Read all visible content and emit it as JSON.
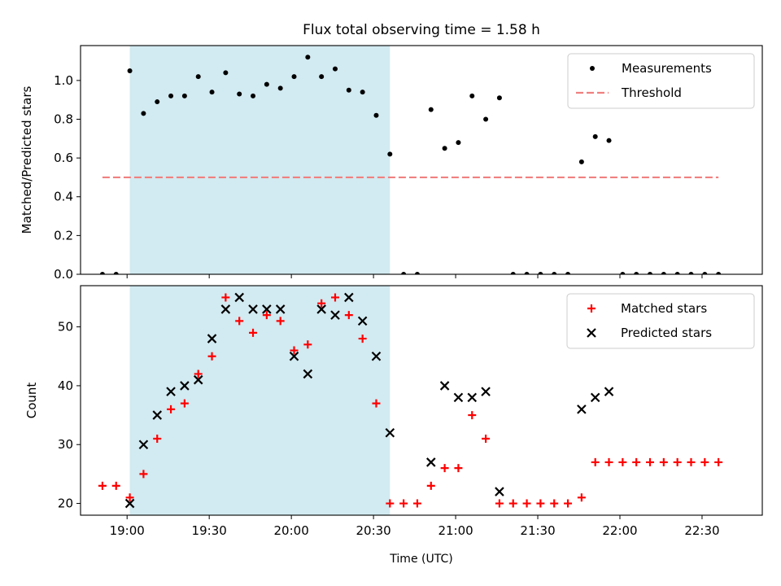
{
  "title": "Flux total observing time = 1.58 h",
  "xlabel": "Time (UTC)",
  "x_ticks": [
    "19:00",
    "19:30",
    "20:00",
    "20:30",
    "21:00",
    "21:30",
    "22:00",
    "22:30"
  ],
  "colors": {
    "measurement": "#000000",
    "threshold": "#f08080",
    "matched": "#ff0000",
    "predicted": "#000000",
    "shade": "#add8e6"
  },
  "chart_data": [
    {
      "type": "scatter",
      "ylabel": "Matched/Predicted stars",
      "xlim": [
        "18:43",
        "22:52"
      ],
      "ylim": [
        0,
        1.18
      ],
      "y_ticks": [
        "0.0",
        "0.2",
        "0.4",
        "0.6",
        "0.8",
        "1.0"
      ],
      "shaded_span": [
        "19:01",
        "20:36"
      ],
      "legend": {
        "placement": "top-right",
        "entries": [
          "Measurements",
          "Threshold"
        ]
      },
      "series": [
        {
          "name": "Measurements",
          "marker": "dot",
          "points": [
            [
              "18:51",
              0.0
            ],
            [
              "18:56",
              0.0
            ],
            [
              "19:01",
              1.05
            ],
            [
              "19:06",
              0.83
            ],
            [
              "19:11",
              0.89
            ],
            [
              "19:16",
              0.92
            ],
            [
              "19:21",
              0.92
            ],
            [
              "19:26",
              1.02
            ],
            [
              "19:31",
              0.94
            ],
            [
              "19:36",
              1.04
            ],
            [
              "19:41",
              0.93
            ],
            [
              "19:46",
              0.92
            ],
            [
              "19:51",
              0.98
            ],
            [
              "19:56",
              0.96
            ],
            [
              "20:01",
              1.02
            ],
            [
              "20:06",
              1.12
            ],
            [
              "20:11",
              1.02
            ],
            [
              "20:16",
              1.06
            ],
            [
              "20:21",
              0.95
            ],
            [
              "20:26",
              0.94
            ],
            [
              "20:31",
              0.82
            ],
            [
              "20:36",
              0.62
            ],
            [
              "20:41",
              0.0
            ],
            [
              "20:46",
              0.0
            ],
            [
              "20:51",
              0.85
            ],
            [
              "20:56",
              0.65
            ],
            [
              "21:01",
              0.68
            ],
            [
              "21:06",
              0.92
            ],
            [
              "21:11",
              0.8
            ],
            [
              "21:16",
              0.91
            ],
            [
              "21:21",
              0.0
            ],
            [
              "21:26",
              0.0
            ],
            [
              "21:31",
              0.0
            ],
            [
              "21:36",
              0.0
            ],
            [
              "21:41",
              0.0
            ],
            [
              "21:46",
              0.58
            ],
            [
              "21:51",
              0.71
            ],
            [
              "21:56",
              0.69
            ],
            [
              "22:01",
              0.0
            ],
            [
              "22:06",
              0.0
            ],
            [
              "22:11",
              0.0
            ],
            [
              "22:16",
              0.0
            ],
            [
              "22:21",
              0.0
            ],
            [
              "22:26",
              0.0
            ],
            [
              "22:31",
              0.0
            ],
            [
              "22:36",
              0.0
            ]
          ]
        },
        {
          "name": "Threshold",
          "marker": "dashed-line",
          "points": [
            [
              "18:51",
              0.5
            ],
            [
              "22:36",
              0.5
            ]
          ]
        }
      ]
    },
    {
      "type": "scatter",
      "ylabel": "Count",
      "xlim": [
        "18:43",
        "22:52"
      ],
      "ylim": [
        18,
        57
      ],
      "y_ticks": [
        "20",
        "30",
        "40",
        "50"
      ],
      "shaded_span": [
        "19:01",
        "20:36"
      ],
      "legend": {
        "placement": "top-right",
        "entries": [
          "Matched stars",
          "Predicted stars"
        ]
      },
      "series": [
        {
          "name": "Matched stars",
          "marker": "plus",
          "points": [
            [
              "18:51",
              23
            ],
            [
              "18:56",
              23
            ],
            [
              "19:01",
              21
            ],
            [
              "19:06",
              25
            ],
            [
              "19:11",
              31
            ],
            [
              "19:16",
              36
            ],
            [
              "19:21",
              37
            ],
            [
              "19:26",
              42
            ],
            [
              "19:31",
              45
            ],
            [
              "19:36",
              55
            ],
            [
              "19:41",
              51
            ],
            [
              "19:46",
              49
            ],
            [
              "19:51",
              52
            ],
            [
              "19:56",
              51
            ],
            [
              "20:01",
              46
            ],
            [
              "20:06",
              47
            ],
            [
              "20:11",
              54
            ],
            [
              "20:16",
              55
            ],
            [
              "20:21",
              52
            ],
            [
              "20:26",
              48
            ],
            [
              "20:31",
              37
            ],
            [
              "20:36",
              20
            ],
            [
              "20:41",
              20
            ],
            [
              "20:46",
              20
            ],
            [
              "20:51",
              23
            ],
            [
              "20:56",
              26
            ],
            [
              "21:01",
              26
            ],
            [
              "21:06",
              35
            ],
            [
              "21:11",
              31
            ],
            [
              "21:16",
              20
            ],
            [
              "21:21",
              20
            ],
            [
              "21:26",
              20
            ],
            [
              "21:31",
              20
            ],
            [
              "21:36",
              20
            ],
            [
              "21:41",
              20
            ],
            [
              "21:46",
              21
            ],
            [
              "21:51",
              27
            ],
            [
              "21:56",
              27
            ],
            [
              "22:01",
              27
            ],
            [
              "22:06",
              27
            ],
            [
              "22:11",
              27
            ],
            [
              "22:16",
              27
            ],
            [
              "22:21",
              27
            ],
            [
              "22:26",
              27
            ],
            [
              "22:31",
              27
            ],
            [
              "22:36",
              27
            ]
          ]
        },
        {
          "name": "Predicted stars",
          "marker": "x",
          "points": [
            [
              "19:01",
              20
            ],
            [
              "19:06",
              30
            ],
            [
              "19:11",
              35
            ],
            [
              "19:16",
              39
            ],
            [
              "19:21",
              40
            ],
            [
              "19:26",
              41
            ],
            [
              "19:31",
              48
            ],
            [
              "19:36",
              53
            ],
            [
              "19:41",
              55
            ],
            [
              "19:46",
              53
            ],
            [
              "19:51",
              53
            ],
            [
              "19:56",
              53
            ],
            [
              "20:01",
              45
            ],
            [
              "20:06",
              42
            ],
            [
              "20:11",
              53
            ],
            [
              "20:16",
              52
            ],
            [
              "20:21",
              55
            ],
            [
              "20:26",
              51
            ],
            [
              "20:31",
              45
            ],
            [
              "20:36",
              32
            ],
            [
              "20:51",
              27
            ],
            [
              "20:56",
              40
            ],
            [
              "21:01",
              38
            ],
            [
              "21:06",
              38
            ],
            [
              "21:11",
              39
            ],
            [
              "21:16",
              22
            ],
            [
              "21:46",
              36
            ],
            [
              "21:51",
              38
            ],
            [
              "21:56",
              39
            ]
          ]
        }
      ]
    }
  ]
}
